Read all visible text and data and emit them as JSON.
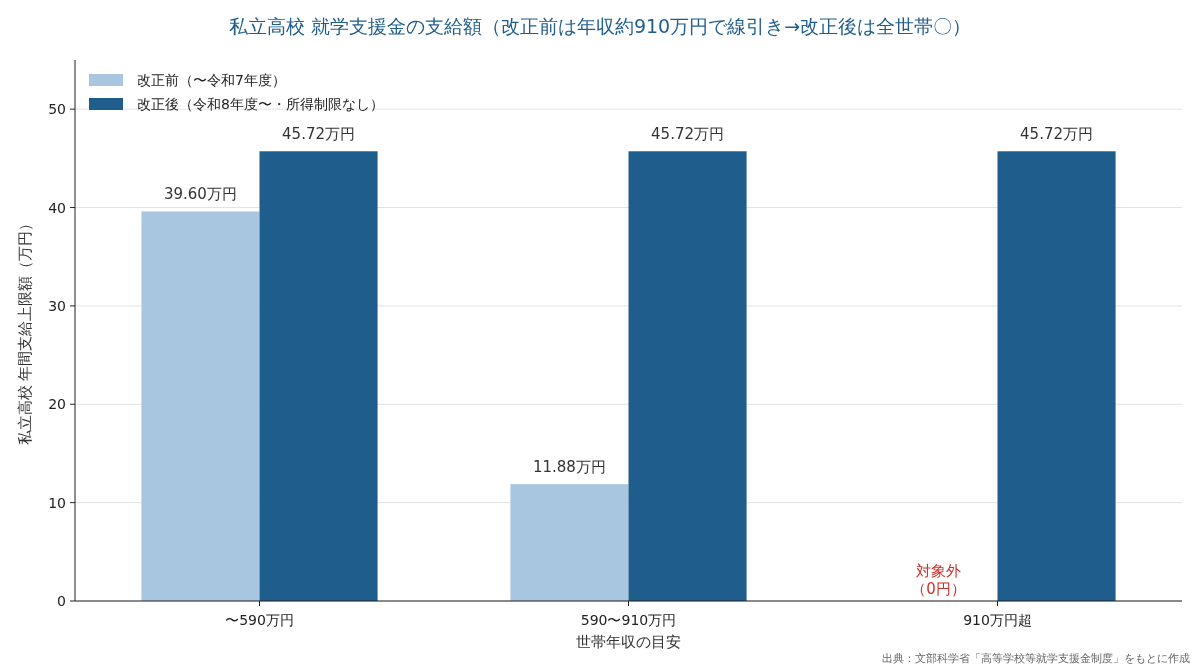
{
  "chart_data": {
    "type": "bar",
    "title": "私立高校 就学支援金の支給額（改正前は年収約910万円で線引き→改正後は全世帯〇）",
    "xlabel": "世帯年収の目安",
    "ylabel": "私立高校 年間支給上限額（万円）",
    "categories": [
      "〜590万円",
      "590〜910万円",
      "910万円超"
    ],
    "series": [
      {
        "name": "改正前（〜令和7年度）",
        "color": "#a9c6e0",
        "values": [
          39.6,
          11.88,
          0
        ],
        "value_labels": [
          "39.60万円",
          "11.88万円",
          null
        ]
      },
      {
        "name": "改正後（令和8年度〜・所得制限なし）",
        "color": "#1f5d8c",
        "values": [
          45.72,
          45.72,
          45.72
        ],
        "value_labels": [
          "45.72万円",
          "45.72万円",
          "45.72万円"
        ]
      }
    ],
    "ylim": [
      0,
      55
    ],
    "yticks": [
      0,
      10,
      20,
      30,
      40,
      50
    ],
    "grid": "y",
    "legend": "top left",
    "annotations": [
      {
        "text": "対象外（0円）",
        "x": "910万円超",
        "y": 0
      },
      "出典：文部科学省「高等学校等就学支援金制度」をもとに作成"
    ]
  }
}
